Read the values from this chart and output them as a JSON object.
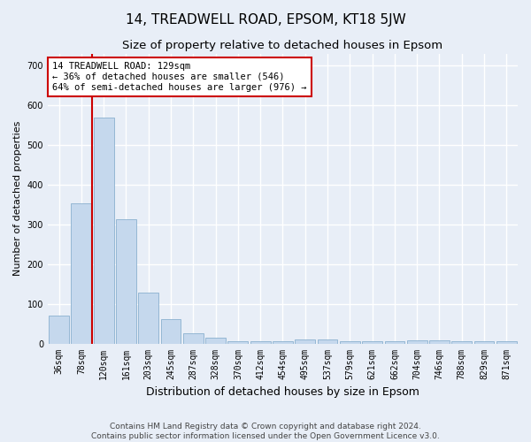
{
  "title": "14, TREADWELL ROAD, EPSOM, KT18 5JW",
  "subtitle": "Size of property relative to detached houses in Epsom",
  "xlabel": "Distribution of detached houses by size in Epsom",
  "ylabel": "Number of detached properties",
  "bar_labels": [
    "36sqm",
    "78sqm",
    "120sqm",
    "161sqm",
    "203sqm",
    "245sqm",
    "287sqm",
    "328sqm",
    "370sqm",
    "412sqm",
    "454sqm",
    "495sqm",
    "537sqm",
    "579sqm",
    "621sqm",
    "662sqm",
    "704sqm",
    "746sqm",
    "788sqm",
    "829sqm",
    "871sqm"
  ],
  "bar_values": [
    70,
    352,
    568,
    312,
    128,
    62,
    25,
    15,
    5,
    5,
    5,
    10,
    10,
    5,
    5,
    5,
    8,
    8,
    5,
    5,
    5
  ],
  "bar_color": "#c5d8ed",
  "bar_edge_color": "#8ab0cf",
  "background_color": "#e8eef7",
  "grid_color": "#ffffff",
  "property_line_x": 1.5,
  "annotation_text": "14 TREADWELL ROAD: 129sqm\n← 36% of detached houses are smaller (546)\n64% of semi-detached houses are larger (976) →",
  "annotation_box_color": "#ffffff",
  "annotation_box_edge": "#cc0000",
  "red_line_color": "#cc0000",
  "ylim": [
    0,
    730
  ],
  "yticks": [
    0,
    100,
    200,
    300,
    400,
    500,
    600,
    700
  ],
  "footer_line1": "Contains HM Land Registry data © Crown copyright and database right 2024.",
  "footer_line2": "Contains public sector information licensed under the Open Government Licence v3.0.",
  "title_fontsize": 11,
  "subtitle_fontsize": 9.5,
  "xlabel_fontsize": 9,
  "ylabel_fontsize": 8,
  "annot_fontsize": 7.5,
  "tick_fontsize": 7,
  "footer_fontsize": 6.5
}
